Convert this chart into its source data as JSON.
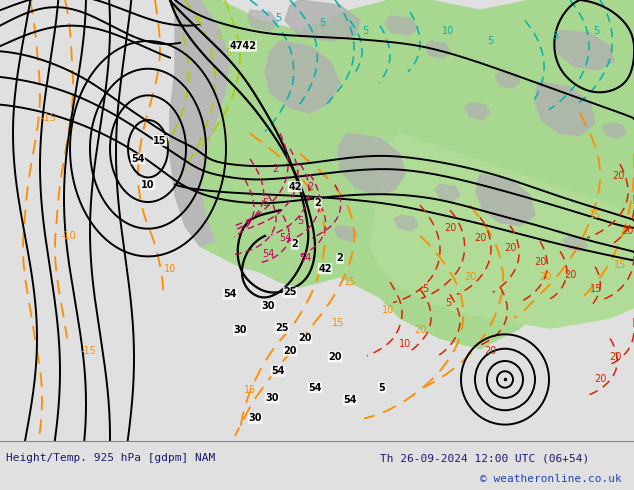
{
  "title_left": "Height/Temp. 925 hPa [gdpm] NAM",
  "title_right": "Th 26-09-2024 12:00 UTC (06+54)",
  "copyright": "© weatheronline.co.uk",
  "figsize": [
    6.34,
    4.9
  ],
  "dpi": 100,
  "bg_color": "#e0e0e0",
  "map_light_grey": "#d8d8d8",
  "map_green": "#90c878",
  "map_dark_green": "#70b055",
  "label_fontsize": 8,
  "copyright_fontsize": 8,
  "text_color": "#1a1a6e",
  "copyright_color": "#2244bb"
}
